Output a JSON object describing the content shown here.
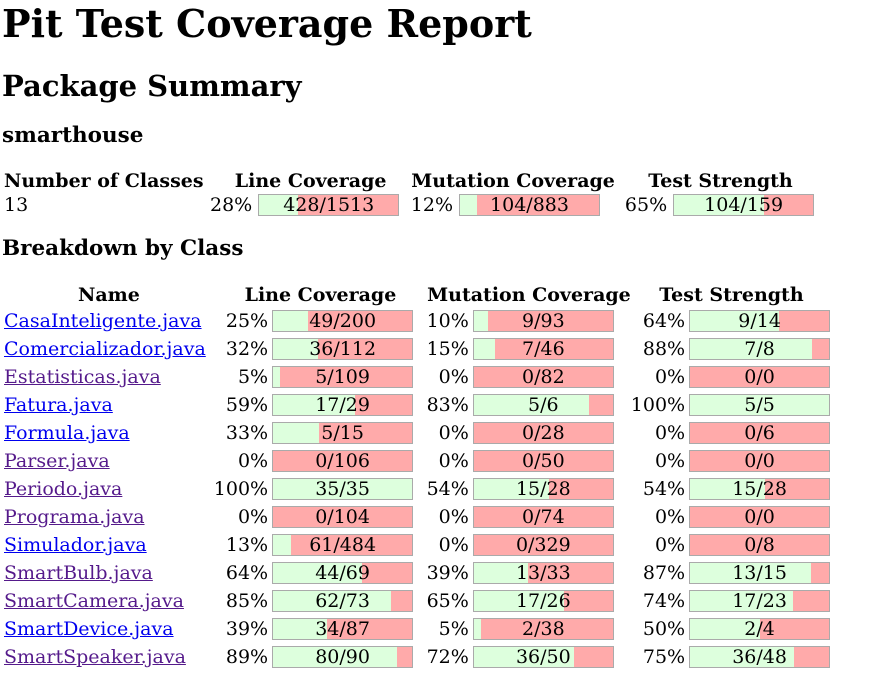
{
  "title": "Pit Test Coverage Report",
  "package_summary_title": "Package Summary",
  "package_name": "smarthouse",
  "summary": {
    "headers": [
      "Number of Classes",
      "Line Coverage",
      "Mutation Coverage",
      "Test Strength"
    ],
    "num_classes": "13",
    "line": {
      "pct": "28%",
      "text": "428/1513",
      "fraction": 0.28
    },
    "mutation": {
      "pct": "12%",
      "text": "104/883",
      "fraction": 0.12
    },
    "strength": {
      "pct": "65%",
      "text": "104/159",
      "fraction": 0.65
    }
  },
  "breakdown_title": "Breakdown by Class",
  "breakdown_headers": [
    "Name",
    "Line Coverage",
    "Mutation Coverage",
    "Test Strength"
  ],
  "classes": [
    {
      "name": "CasaInteligente.java",
      "visited": false,
      "line": {
        "pct": "25%",
        "text": "49/200",
        "fraction": 0.25
      },
      "mutation": {
        "pct": "10%",
        "text": "9/93",
        "fraction": 0.1
      },
      "strength": {
        "pct": "64%",
        "text": "9/14",
        "fraction": 0.64
      }
    },
    {
      "name": "Comercializador.java",
      "visited": false,
      "line": {
        "pct": "32%",
        "text": "36/112",
        "fraction": 0.32
      },
      "mutation": {
        "pct": "15%",
        "text": "7/46",
        "fraction": 0.15
      },
      "strength": {
        "pct": "88%",
        "text": "7/8",
        "fraction": 0.88
      }
    },
    {
      "name": "Estatisticas.java",
      "visited": true,
      "line": {
        "pct": "5%",
        "text": "5/109",
        "fraction": 0.05
      },
      "mutation": {
        "pct": "0%",
        "text": "0/82",
        "fraction": 0.0
      },
      "strength": {
        "pct": "0%",
        "text": "0/0",
        "fraction": 0.0
      }
    },
    {
      "name": "Fatura.java",
      "visited": false,
      "line": {
        "pct": "59%",
        "text": "17/29",
        "fraction": 0.59
      },
      "mutation": {
        "pct": "83%",
        "text": "5/6",
        "fraction": 0.83
      },
      "strength": {
        "pct": "100%",
        "text": "5/5",
        "fraction": 1.0
      }
    },
    {
      "name": "Formula.java",
      "visited": false,
      "line": {
        "pct": "33%",
        "text": "5/15",
        "fraction": 0.33
      },
      "mutation": {
        "pct": "0%",
        "text": "0/28",
        "fraction": 0.0
      },
      "strength": {
        "pct": "0%",
        "text": "0/6",
        "fraction": 0.0
      }
    },
    {
      "name": "Parser.java",
      "visited": true,
      "line": {
        "pct": "0%",
        "text": "0/106",
        "fraction": 0.0
      },
      "mutation": {
        "pct": "0%",
        "text": "0/50",
        "fraction": 0.0
      },
      "strength": {
        "pct": "0%",
        "text": "0/0",
        "fraction": 0.0
      }
    },
    {
      "name": "Periodo.java",
      "visited": true,
      "line": {
        "pct": "100%",
        "text": "35/35",
        "fraction": 1.0
      },
      "mutation": {
        "pct": "54%",
        "text": "15/28",
        "fraction": 0.54
      },
      "strength": {
        "pct": "54%",
        "text": "15/28",
        "fraction": 0.54
      }
    },
    {
      "name": "Programa.java",
      "visited": true,
      "line": {
        "pct": "0%",
        "text": "0/104",
        "fraction": 0.0
      },
      "mutation": {
        "pct": "0%",
        "text": "0/74",
        "fraction": 0.0
      },
      "strength": {
        "pct": "0%",
        "text": "0/0",
        "fraction": 0.0
      }
    },
    {
      "name": "Simulador.java",
      "visited": false,
      "line": {
        "pct": "13%",
        "text": "61/484",
        "fraction": 0.13
      },
      "mutation": {
        "pct": "0%",
        "text": "0/329",
        "fraction": 0.0
      },
      "strength": {
        "pct": "0%",
        "text": "0/8",
        "fraction": 0.0
      }
    },
    {
      "name": "SmartBulb.java",
      "visited": true,
      "line": {
        "pct": "64%",
        "text": "44/69",
        "fraction": 0.64
      },
      "mutation": {
        "pct": "39%",
        "text": "13/33",
        "fraction": 0.39
      },
      "strength": {
        "pct": "87%",
        "text": "13/15",
        "fraction": 0.87
      }
    },
    {
      "name": "SmartCamera.java",
      "visited": true,
      "line": {
        "pct": "85%",
        "text": "62/73",
        "fraction": 0.85
      },
      "mutation": {
        "pct": "65%",
        "text": "17/26",
        "fraction": 0.65
      },
      "strength": {
        "pct": "74%",
        "text": "17/23",
        "fraction": 0.74
      }
    },
    {
      "name": "SmartDevice.java",
      "visited": false,
      "line": {
        "pct": "39%",
        "text": "34/87",
        "fraction": 0.39
      },
      "mutation": {
        "pct": "5%",
        "text": "2/38",
        "fraction": 0.05
      },
      "strength": {
        "pct": "50%",
        "text": "2/4",
        "fraction": 0.5
      }
    },
    {
      "name": "SmartSpeaker.java",
      "visited": true,
      "line": {
        "pct": "89%",
        "text": "80/90",
        "fraction": 0.89
      },
      "mutation": {
        "pct": "72%",
        "text": "36/50",
        "fraction": 0.72
      },
      "strength": {
        "pct": "75%",
        "text": "36/48",
        "fraction": 0.75
      }
    }
  ],
  "colors": {
    "covered": "#ddffdd",
    "uncovered": "#ffaaaa",
    "link": "#0000ee",
    "visited_link": "#551a8b"
  }
}
